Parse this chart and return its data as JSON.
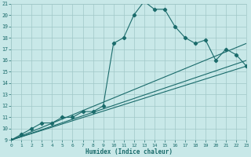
{
  "xlabel": "Humidex (Indice chaleur)",
  "bg_color": "#c8e8e8",
  "grid_color": "#a0c8c8",
  "line_color": "#1a6b6b",
  "xmin": 0,
  "xmax": 23,
  "ymin": 9,
  "ymax": 21,
  "xticks": [
    0,
    1,
    2,
    3,
    4,
    5,
    6,
    7,
    8,
    9,
    10,
    11,
    12,
    13,
    14,
    15,
    16,
    17,
    18,
    19,
    20,
    21,
    22,
    23
  ],
  "yticks": [
    9,
    10,
    11,
    12,
    13,
    14,
    15,
    16,
    17,
    18,
    19,
    20,
    21
  ],
  "curve_x": [
    0,
    1,
    2,
    3,
    4,
    5,
    6,
    7,
    8,
    9,
    10,
    11,
    12,
    13,
    14,
    15,
    16,
    17,
    18,
    19,
    20,
    21,
    22,
    23
  ],
  "curve_y": [
    9.0,
    9.5,
    10.0,
    10.5,
    10.5,
    11.0,
    11.0,
    11.5,
    11.5,
    12.0,
    17.5,
    18.0,
    20.0,
    21.2,
    20.5,
    20.5,
    19.0,
    18.0,
    17.5,
    17.8,
    16.0,
    17.0,
    16.5,
    15.5
  ],
  "straight_lines": [
    {
      "x": [
        0,
        23
      ],
      "y": [
        9,
        17.5
      ]
    },
    {
      "x": [
        0,
        23
      ],
      "y": [
        9,
        16.0
      ]
    },
    {
      "x": [
        0,
        23
      ],
      "y": [
        9,
        15.5
      ]
    }
  ]
}
